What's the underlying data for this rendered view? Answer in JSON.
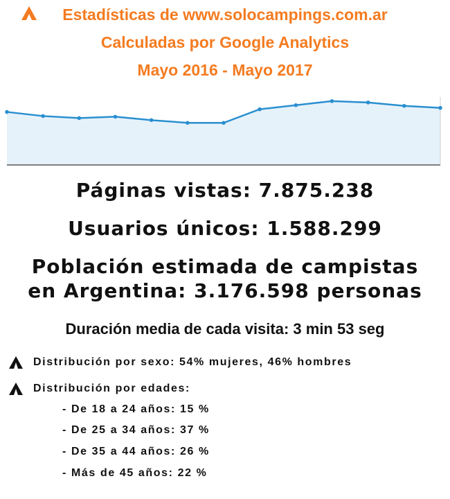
{
  "header": {
    "lines": [
      "Estadísticas de www.solocampings.com.ar",
      "Calculadas por Google Analytics",
      "Mayo 2016 - Mayo 2017"
    ]
  },
  "chart_data": {
    "type": "line",
    "values": [
      78,
      72,
      69,
      71,
      66,
      62,
      62,
      82,
      88,
      94,
      92,
      87,
      84
    ],
    "ylim": [
      0,
      100
    ],
    "color": "#2a8fd0"
  },
  "stats": {
    "pageviews": "Páginas vistas: 7.875.238",
    "users": "Usuarios únicos: 1.588.299",
    "population": [
      "Población estimada de campistas",
      "en Argentina: 3.176.598 personas"
    ],
    "duration": "Duración media de cada visita: 3 min 53 seg"
  },
  "bullets": {
    "sex": "Distribución por sexo: 54% mujeres, 46% hombres",
    "ages_heading": "Distribución por edades:",
    "ages": [
      "- De 18 a 24 años: 15 %",
      "- De 25 a 34 años: 37 %",
      "- De 35 a 44 años: 26 %",
      "- Más de 45 años: 22 %"
    ]
  }
}
